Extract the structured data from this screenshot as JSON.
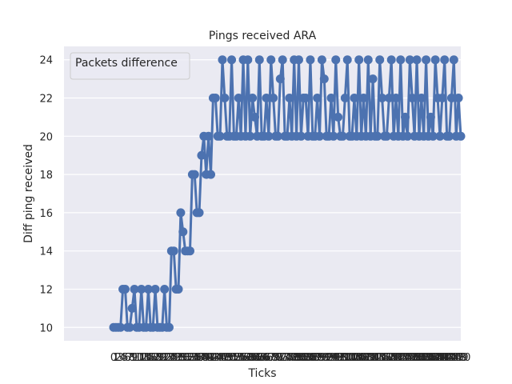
{
  "chart_data": {
    "type": "line",
    "title": "Pings received ARA",
    "xlabel": "Ticks",
    "ylabel": "Diff ping received",
    "ylim": [
      9.3,
      24.7
    ],
    "yticks": [
      10,
      12,
      14,
      16,
      18,
      20,
      22,
      24
    ],
    "grid": true,
    "legend": {
      "label": "Packets difference",
      "placement": "top-left"
    },
    "style": {
      "background": "#eaeaf2",
      "grid_color": "#ffffff",
      "line_color": "#4c72b0"
    },
    "series": [
      {
        "values": [
          10,
          10,
          10,
          10,
          12,
          12,
          10,
          10,
          11,
          12,
          10,
          10,
          12,
          10,
          10,
          12,
          10,
          10,
          12,
          10,
          10,
          10,
          12,
          10,
          10,
          14,
          14,
          12,
          12,
          16,
          15,
          14,
          14,
          14,
          18,
          18,
          16,
          16,
          19,
          20,
          18,
          20,
          18,
          22,
          22,
          20,
          20,
          24,
          22,
          20,
          20,
          24,
          20,
          20,
          22,
          20,
          24,
          20,
          24,
          20,
          22,
          21,
          20,
          24,
          20,
          20,
          22,
          20,
          24,
          22,
          20,
          20,
          23,
          24,
          20,
          20,
          22,
          20,
          24,
          20,
          24,
          20,
          22,
          22,
          20,
          24,
          20,
          20,
          22,
          20,
          24,
          23,
          20,
          20,
          22,
          20,
          24,
          21,
          20,
          20,
          22,
          24,
          20,
          20,
          22,
          20,
          24,
          20,
          22,
          20,
          24,
          20,
          23,
          20,
          20,
          24,
          22,
          20,
          20,
          22,
          24,
          20,
          22,
          20,
          24,
          20,
          21,
          20,
          24,
          22,
          20,
          24,
          20,
          22,
          20,
          24,
          20,
          21,
          20,
          24,
          22,
          20,
          22,
          24,
          20,
          20,
          22,
          24,
          20,
          22,
          20
        ]
      }
    ]
  }
}
